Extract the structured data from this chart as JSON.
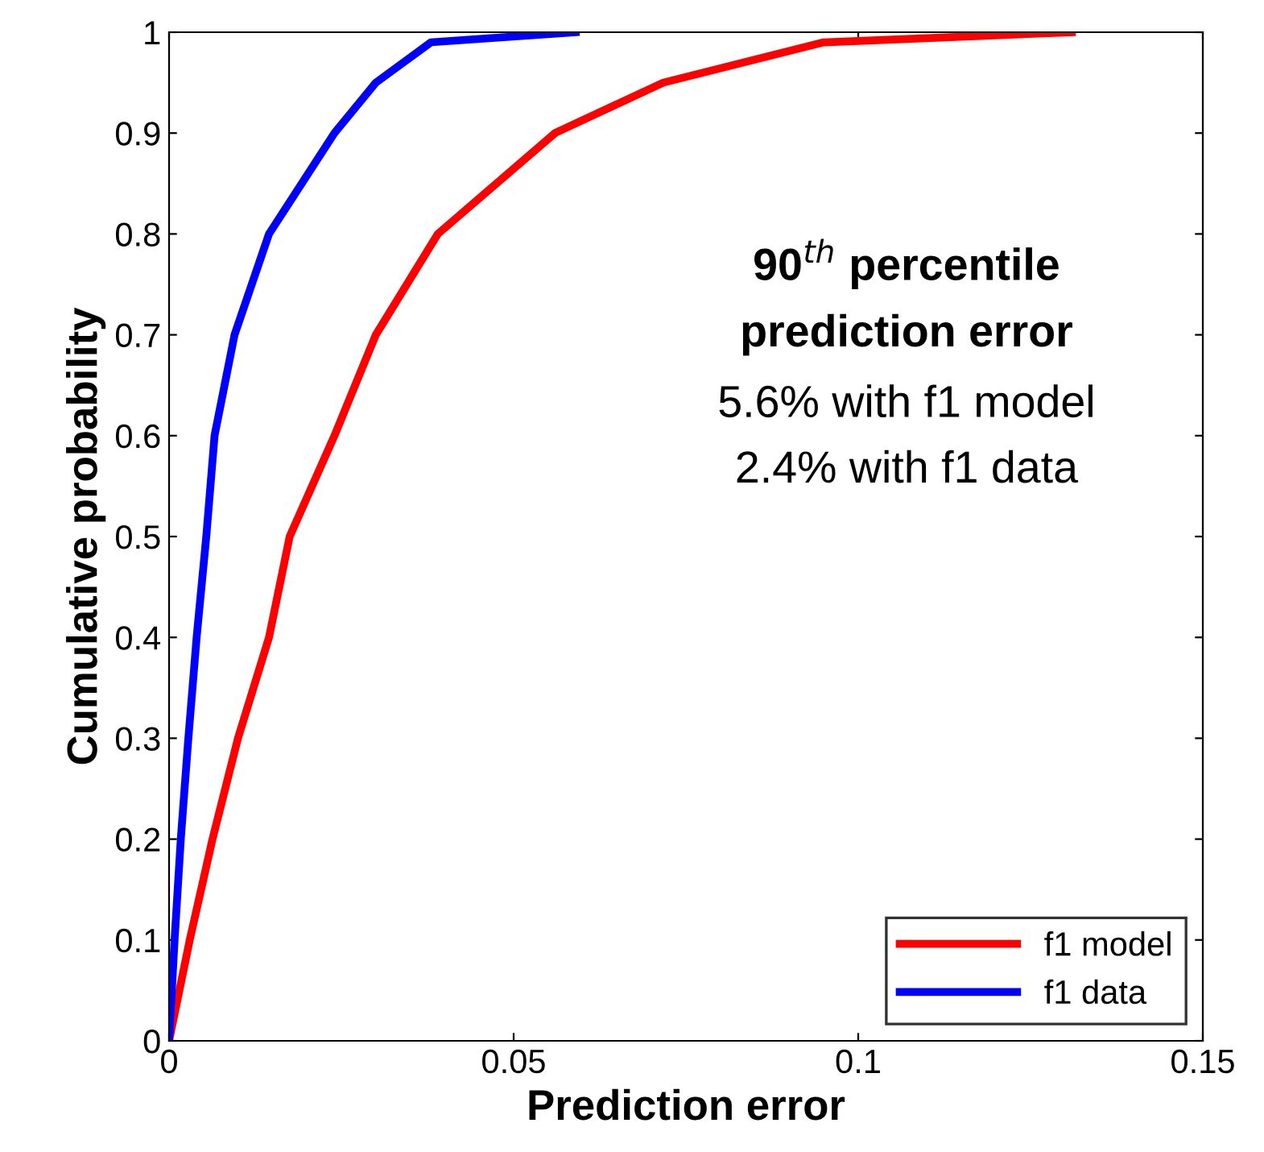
{
  "chart_data": {
    "type": "line",
    "xlabel": "Prediction error",
    "ylabel": "Cumulative probability",
    "series": [
      {
        "name": "f1 model",
        "color": "#ff0000",
        "x": [
          0,
          0.003,
          0.0063,
          0.01,
          0.0145,
          0.0175,
          0.024,
          0.03,
          0.039,
          0.056,
          0.0717,
          0.095,
          0.131
        ],
        "values": [
          0,
          0.1,
          0.2,
          0.3,
          0.4,
          0.5,
          0.6,
          0.7,
          0.8,
          0.9,
          0.95,
          0.99,
          1.0
        ]
      },
      {
        "name": "f1 data",
        "color": "#0000ff",
        "x": [
          0,
          0.0008,
          0.0017,
          0.0028,
          0.004,
          0.0054,
          0.0066,
          0.0095,
          0.0145,
          0.024,
          0.03,
          0.038,
          0.059
        ],
        "values": [
          0,
          0.1,
          0.2,
          0.3,
          0.4,
          0.5,
          0.6,
          0.7,
          0.8,
          0.9,
          0.95,
          0.99,
          1.0
        ]
      }
    ],
    "xlim": [
      0,
      0.15
    ],
    "xticks": [
      0,
      0.05,
      0.1,
      0.15
    ],
    "ylim": [
      0,
      1
    ],
    "yticks": [
      0,
      0.1,
      0.2,
      0.3,
      0.4,
      0.5,
      0.6,
      0.7,
      0.8,
      0.9,
      1
    ],
    "annotations": [
      "90$^{th}$ percentile",
      "prediction error",
      "5.6% with f1 model",
      "2.4% with f1 data"
    ],
    "legend": "bottom right",
    "grid": false,
    "marker": "none",
    "line_style": "solid"
  }
}
